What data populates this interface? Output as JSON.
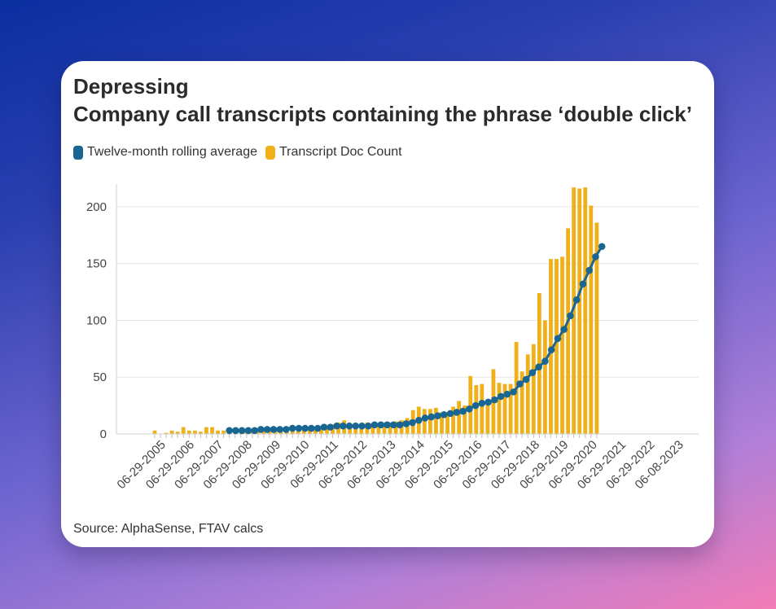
{
  "card": {
    "title": "Depressing",
    "subtitle": "Company call transcripts containing the phrase ‘double click’",
    "source": "Source: AlphaSense, FTAV calcs"
  },
  "legend": [
    {
      "label": "Twelve-month rolling average",
      "color": "#1a6693"
    },
    {
      "label": "Transcript Doc Count",
      "color": "#efb019"
    }
  ],
  "chart_data": {
    "type": "bar",
    "title": "Company call transcripts containing the phrase ‘double click’",
    "xlabel": "",
    "ylabel": "",
    "ylim": [
      0,
      220
    ],
    "yticks": [
      0,
      50,
      100,
      150,
      200
    ],
    "grid": true,
    "legend_position": "top-left",
    "x_tick_labels": [
      "06-29-2005",
      "06-29-2006",
      "06-29-2007",
      "06-29-2008",
      "06-29-2009",
      "06-29-2010",
      "06-29-2011",
      "06-29-2012",
      "06-29-2013",
      "06-29-2014",
      "06-29-2015",
      "06-29-2016",
      "06-29-2017",
      "06-29-2018",
      "06-29-2019",
      "06-29-2020",
      "06-29-2021",
      "06-29-2022",
      "06-08-2023"
    ],
    "series": [
      {
        "name": "Transcript Doc Count",
        "type": "bar",
        "color": "#efb019",
        "values": [
          3,
          0,
          1,
          3,
          2,
          6,
          3,
          3,
          2,
          6,
          6,
          3,
          3,
          3,
          3,
          3,
          3,
          3,
          3,
          4,
          4,
          5,
          5,
          5,
          7,
          6,
          5,
          6,
          6,
          6,
          7,
          8,
          10,
          12,
          8,
          8,
          8,
          10,
          9,
          9,
          10,
          10,
          11,
          12,
          14,
          21,
          24,
          22,
          22,
          23,
          19,
          17,
          24,
          29,
          25,
          51,
          43,
          44,
          27,
          57,
          45,
          44,
          44,
          81,
          55,
          70,
          79,
          124,
          100,
          154,
          154,
          156,
          181,
          217,
          216,
          217,
          201,
          186
        ],
        "values_from_index": 0
      },
      {
        "name": "Twelve-month rolling average",
        "type": "line",
        "color": "#1a6693",
        "values": [
          3,
          3,
          3,
          3,
          3,
          4,
          4,
          4,
          4,
          4,
          5,
          5,
          5,
          5,
          5,
          6,
          6,
          7,
          7,
          7,
          7,
          7,
          7,
          8,
          8,
          8,
          8,
          8,
          9,
          10,
          12,
          14,
          15,
          16,
          17,
          18,
          19,
          20,
          22,
          25,
          27,
          28,
          30,
          33,
          35,
          37,
          44,
          48,
          54,
          59,
          64,
          74,
          84,
          92,
          104,
          118,
          132,
          144,
          156,
          165
        ],
        "start_index": 13
      }
    ]
  }
}
